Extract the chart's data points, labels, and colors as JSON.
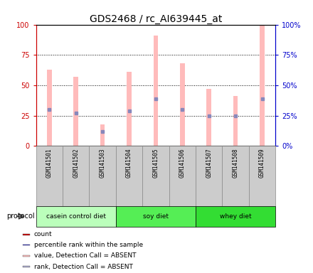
{
  "title": "GDS2468 / rc_AI639445_at",
  "samples": [
    "GSM141501",
    "GSM141502",
    "GSM141503",
    "GSM141504",
    "GSM141505",
    "GSM141506",
    "GSM141507",
    "GSM141508",
    "GSM141509"
  ],
  "pink_bars": [
    63,
    57,
    18,
    61,
    91,
    68,
    47,
    41,
    100
  ],
  "blue_marks": [
    30,
    27,
    12,
    29,
    39,
    30,
    25,
    25,
    39
  ],
  "groups": [
    {
      "label": "casein control diet",
      "start": 0,
      "end": 2,
      "color": "#bbffbb"
    },
    {
      "label": "soy diet",
      "start": 3,
      "end": 5,
      "color": "#55ee55"
    },
    {
      "label": "whey diet",
      "start": 6,
      "end": 8,
      "color": "#33dd33"
    }
  ],
  "ylim": [
    0,
    100
  ],
  "yticks": [
    0,
    25,
    50,
    75,
    100
  ],
  "left_axis_color": "#cc0000",
  "right_axis_color": "#0000cc",
  "pink_bar_color": "#ffbbbb",
  "blue_mark_color": "#8888bb",
  "grid_color": "black",
  "legend_items": [
    {
      "color": "#cc0000",
      "label": "count"
    },
    {
      "color": "#0000cc",
      "label": "percentile rank within the sample"
    },
    {
      "color": "#ffbbbb",
      "label": "value, Detection Call = ABSENT"
    },
    {
      "color": "#aaaacc",
      "label": "rank, Detection Call = ABSENT"
    }
  ],
  "protocol_label": "protocol",
  "background_color": "#ffffff",
  "title_fontsize": 10,
  "sample_label_bg": "#cccccc",
  "sample_label_border": "#888888"
}
